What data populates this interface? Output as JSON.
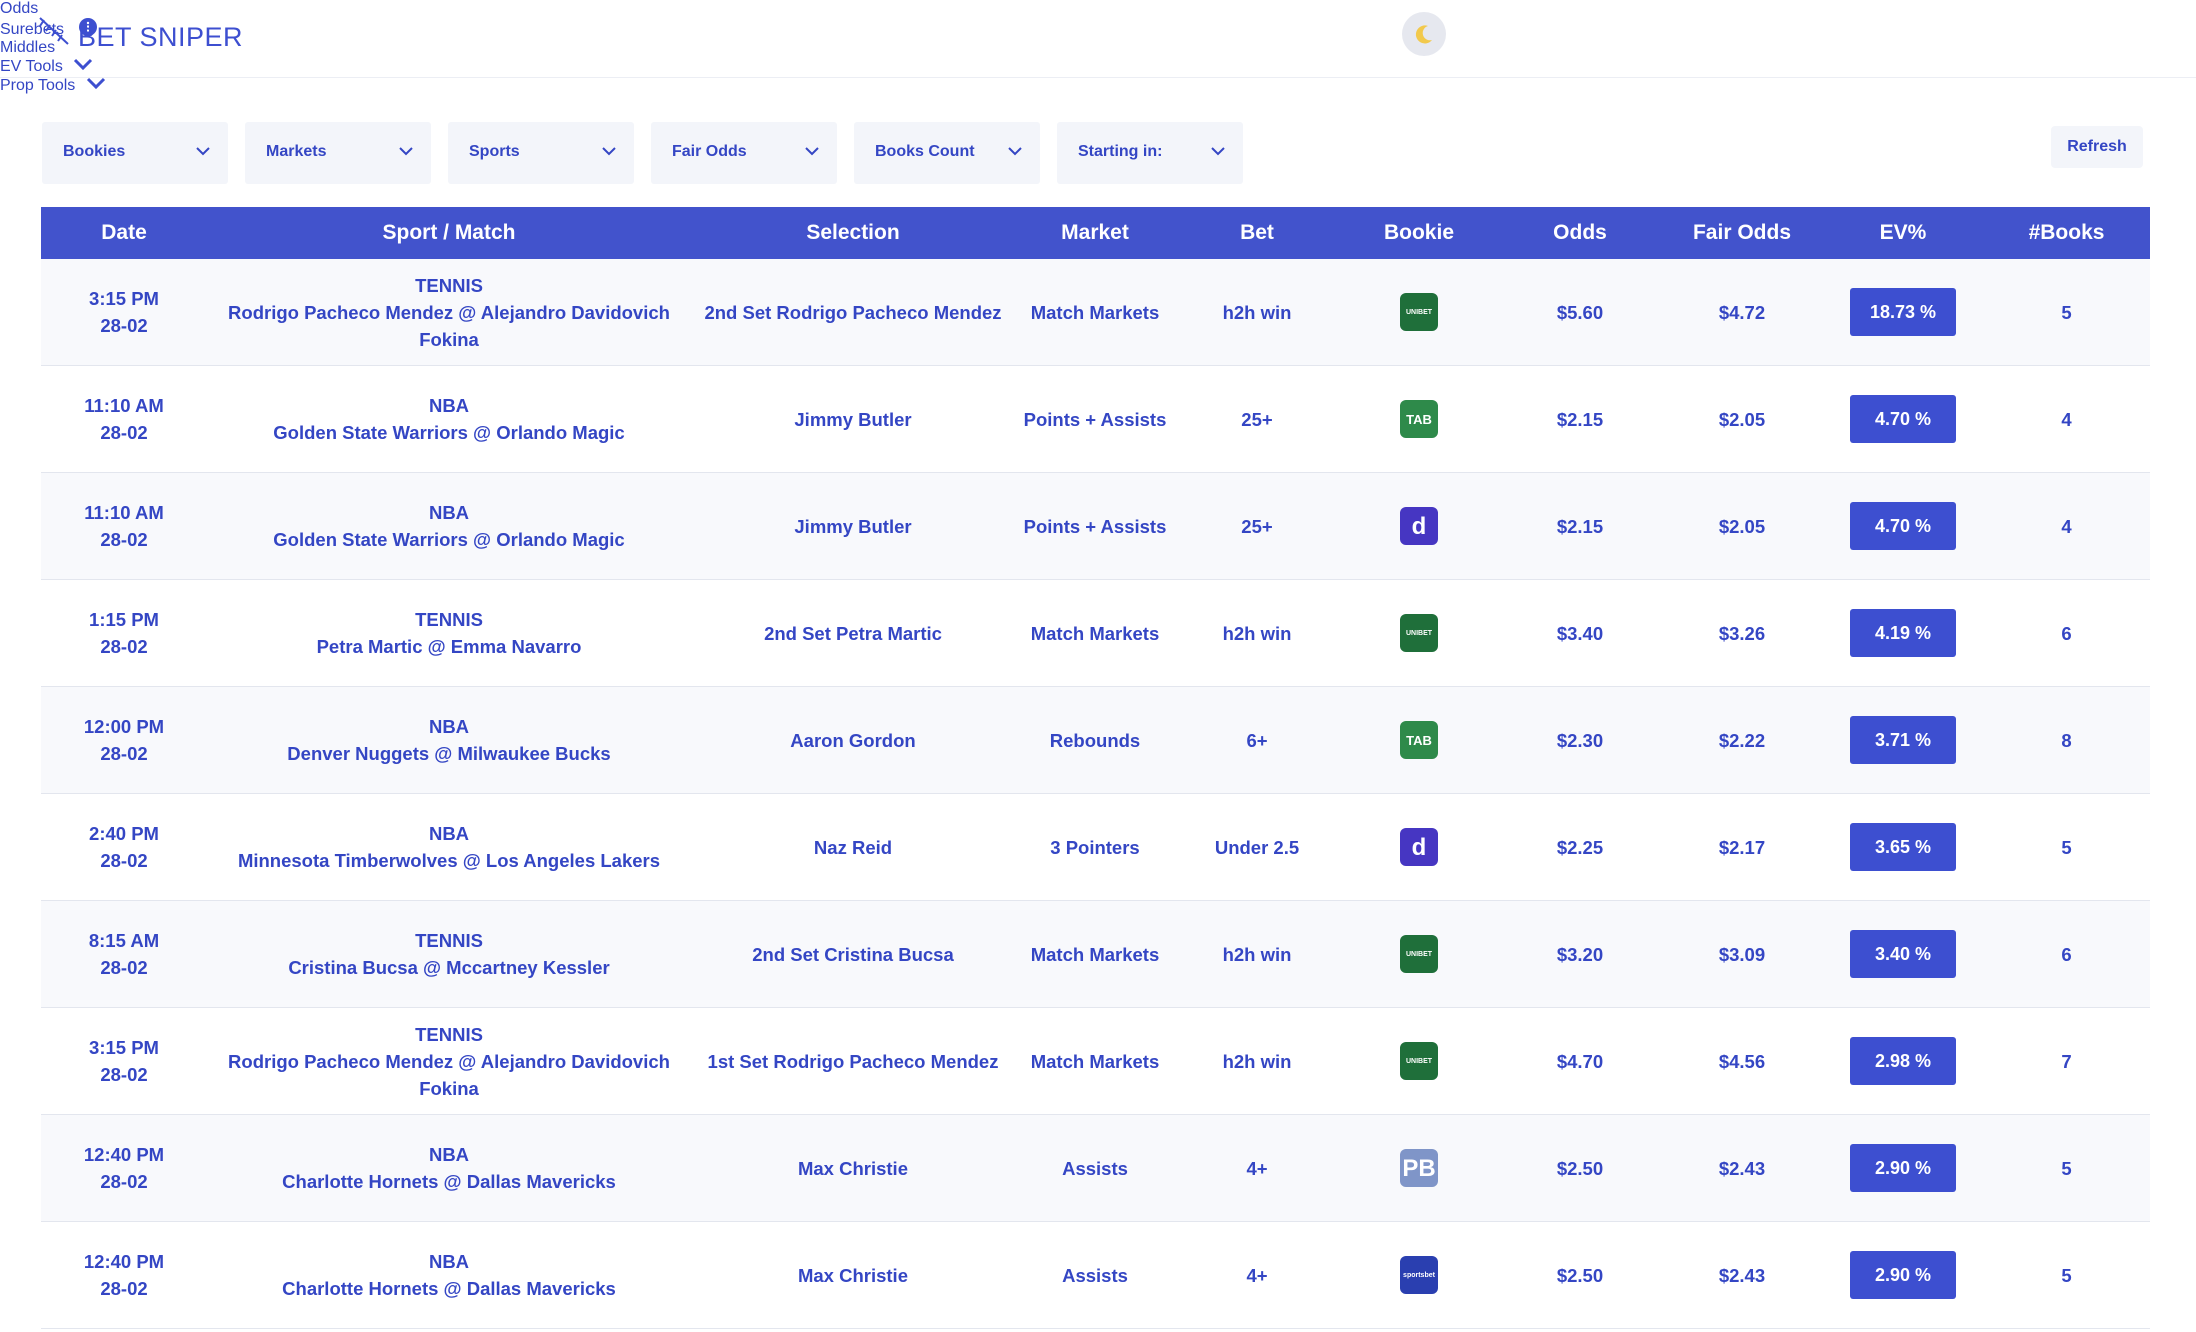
{
  "header": {
    "logo": "BET SNIPER",
    "nav": [
      "Odds",
      "Surebets",
      "Middles",
      "EV Tools",
      "Prop Tools"
    ]
  },
  "filters": [
    "Bookies",
    "Markets",
    "Sports",
    "Fair Odds",
    "Books Count",
    "Starting in:"
  ],
  "refresh": "Refresh",
  "table": {
    "columns": [
      "Date",
      "Sport / Match",
      "Selection",
      "Market",
      "Bet",
      "Bookie",
      "Odds",
      "Fair Odds",
      "EV%",
      "#Books"
    ],
    "rows": [
      {
        "time": "3:15 PM",
        "date": "28-02",
        "sport": "TENNIS",
        "match": "Rodrigo Pacheco Mendez @ Alejandro Davidovich Fokina",
        "selection": "2nd Set Rodrigo Pacheco Mendez",
        "market": "Match Markets",
        "bet": "h2h win",
        "bookie": "UNIBET",
        "bookie_color": "#1f6f3a",
        "odds": "$5.60",
        "fair_odds": "$4.72",
        "ev": "18.73 %",
        "books": 5
      },
      {
        "time": "11:10 AM",
        "date": "28-02",
        "sport": "NBA",
        "match": "Golden State Warriors @ Orlando Magic",
        "selection": "Jimmy Butler",
        "market": "Points + Assists",
        "bet": "25+",
        "bookie": "TAB",
        "bookie_color": "#2e8a4a",
        "odds": "$2.15",
        "fair_odds": "$2.05",
        "ev": "4.70 %",
        "books": 4
      },
      {
        "time": "11:10 AM",
        "date": "28-02",
        "sport": "NBA",
        "match": "Golden State Warriors @ Orlando Magic",
        "selection": "Jimmy Butler",
        "market": "Points + Assists",
        "bet": "25+",
        "bookie": "d",
        "bookie_color": "#4636c2",
        "odds": "$2.15",
        "fair_odds": "$2.05",
        "ev": "4.70 %",
        "books": 4
      },
      {
        "time": "1:15 PM",
        "date": "28-02",
        "sport": "TENNIS",
        "match": "Petra Martic @ Emma Navarro",
        "selection": "2nd Set Petra Martic",
        "market": "Match Markets",
        "bet": "h2h win",
        "bookie": "UNIBET",
        "bookie_color": "#1f6f3a",
        "odds": "$3.40",
        "fair_odds": "$3.26",
        "ev": "4.19 %",
        "books": 6
      },
      {
        "time": "12:00 PM",
        "date": "28-02",
        "sport": "NBA",
        "match": "Denver Nuggets @ Milwaukee Bucks",
        "selection": "Aaron Gordon",
        "market": "Rebounds",
        "bet": "6+",
        "bookie": "TAB",
        "bookie_color": "#2e8a4a",
        "odds": "$2.30",
        "fair_odds": "$2.22",
        "ev": "3.71 %",
        "books": 8
      },
      {
        "time": "2:40 PM",
        "date": "28-02",
        "sport": "NBA",
        "match": "Minnesota Timberwolves @ Los Angeles Lakers",
        "selection": "Naz Reid",
        "market": "3 Pointers",
        "bet": "Under 2.5",
        "bookie": "d",
        "bookie_color": "#4636c2",
        "odds": "$2.25",
        "fair_odds": "$2.17",
        "ev": "3.65 %",
        "books": 5
      },
      {
        "time": "8:15 AM",
        "date": "28-02",
        "sport": "TENNIS",
        "match": "Cristina Bucsa @ Mccartney Kessler",
        "selection": "2nd Set Cristina Bucsa",
        "market": "Match Markets",
        "bet": "h2h win",
        "bookie": "UNIBET",
        "bookie_color": "#1f6f3a",
        "odds": "$3.20",
        "fair_odds": "$3.09",
        "ev": "3.40 %",
        "books": 6
      },
      {
        "time": "3:15 PM",
        "date": "28-02",
        "sport": "TENNIS",
        "match": "Rodrigo Pacheco Mendez @ Alejandro Davidovich Fokina",
        "selection": "1st Set Rodrigo Pacheco Mendez",
        "market": "Match Markets",
        "bet": "h2h win",
        "bookie": "UNIBET",
        "bookie_color": "#1f6f3a",
        "odds": "$4.70",
        "fair_odds": "$4.56",
        "ev": "2.98 %",
        "books": 7
      },
      {
        "time": "12:40 PM",
        "date": "28-02",
        "sport": "NBA",
        "match": "Charlotte Hornets @ Dallas Mavericks",
        "selection": "Max Christie",
        "market": "Assists",
        "bet": "4+",
        "bookie": "PB",
        "bookie_color": "#7f95c8",
        "odds": "$2.50",
        "fair_odds": "$2.43",
        "ev": "2.90 %",
        "books": 5
      },
      {
        "time": "12:40 PM",
        "date": "28-02",
        "sport": "NBA",
        "match": "Charlotte Hornets @ Dallas Mavericks",
        "selection": "Max Christie",
        "market": "Assists",
        "bet": "4+",
        "bookie": "sportsbet",
        "bookie_color": "#2a3fb0",
        "odds": "$2.50",
        "fair_odds": "$2.43",
        "ev": "2.90 %",
        "books": 5
      }
    ]
  }
}
